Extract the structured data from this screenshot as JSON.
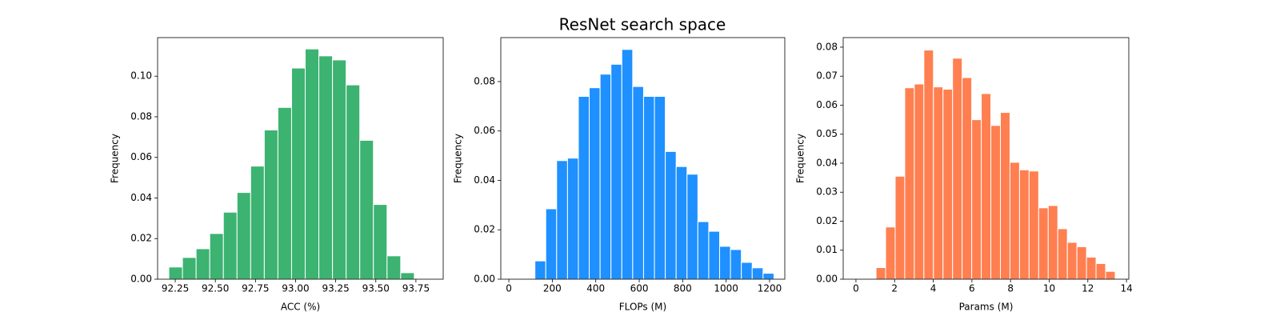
{
  "title": "ResNet search space",
  "chart_data": [
    {
      "type": "histogram",
      "x_label": "ACC (%)",
      "y_label": "Frequency",
      "color": "#3cb371",
      "bins": [
        92.21,
        92.295,
        92.38,
        92.465,
        92.55,
        92.635,
        92.72,
        92.805,
        92.89,
        92.975,
        93.06,
        93.145,
        93.23,
        93.315,
        93.4,
        93.485,
        93.57,
        93.655,
        93.74,
        93.825
      ],
      "values": [
        0.006,
        0.0107,
        0.015,
        0.0225,
        0.033,
        0.0427,
        0.0557,
        0.0735,
        0.0846,
        0.104,
        0.1134,
        0.11,
        0.108,
        0.0957,
        0.0684,
        0.0368,
        0.0115,
        0.0032,
        0.0004
      ],
      "xlim": [
        92.14,
        93.92
      ],
      "xticks": [
        92.25,
        {
          "value": 92.5,
          "label": "92.50"
        },
        92.75,
        {
          "value": 93.0,
          "label": "93.00"
        },
        93.25,
        {
          "value": 93.5,
          "label": "93.50"
        },
        93.75
      ],
      "ylim": [
        0,
        0.119
      ],
      "yticks": [
        {
          "value": 0,
          "label": "0.00"
        },
        0.02,
        0.04,
        0.06,
        0.08,
        {
          "value": 0.1,
          "label": "0.10"
        }
      ]
    },
    {
      "type": "histogram",
      "x_label": "FLOPs (M)",
      "y_label": "Frequency",
      "color": "#1e90ff",
      "bins": [
        70,
        120,
        170,
        220,
        270,
        320,
        370,
        420,
        470,
        520,
        570,
        620,
        670,
        720,
        770,
        820,
        870,
        920,
        970,
        1020,
        1070,
        1120,
        1170,
        1220
      ],
      "values": [
        0.0003,
        0.0074,
        0.0285,
        0.048,
        0.049,
        0.074,
        0.0775,
        0.083,
        0.087,
        0.093,
        0.078,
        0.074,
        0.074,
        0.0517,
        0.0456,
        0.0425,
        0.0233,
        0.0194,
        0.0133,
        0.012,
        0.0068,
        0.0046,
        0.0024
      ],
      "xlim": [
        -37,
        1270
      ],
      "xticks": [
        0,
        200,
        400,
        600,
        800,
        1000,
        1200
      ],
      "ylim": [
        0,
        0.0978
      ],
      "yticks": [
        {
          "value": 0,
          "label": "0.00"
        },
        0.02,
        0.04,
        0.06,
        0.08
      ]
    },
    {
      "type": "histogram",
      "x_label": "Params (M)",
      "y_label": "Frequency",
      "color": "#ff7f50",
      "bins": [
        1.04,
        1.535,
        2.03,
        2.525,
        3.02,
        3.515,
        4.01,
        4.505,
        5.0,
        5.495,
        5.99,
        6.485,
        6.98,
        7.475,
        7.97,
        8.465,
        8.96,
        9.455,
        9.95,
        10.445,
        10.94,
        11.435,
        11.93,
        12.425,
        12.92,
        13.415
      ],
      "values": [
        0.004,
        0.018,
        0.0355,
        0.066,
        0.0673,
        0.079,
        0.0663,
        0.0655,
        0.0762,
        0.0695,
        0.055,
        0.064,
        0.053,
        0.0575,
        0.0403,
        0.0377,
        0.0373,
        0.0246,
        0.0254,
        0.0174,
        0.0127,
        0.0112,
        0.0076,
        0.0054,
        0.0027
      ],
      "xlim": [
        -0.66,
        14.12
      ],
      "xticks": [
        0,
        2,
        4,
        6,
        8,
        10,
        12,
        14
      ],
      "ylim": [
        0,
        0.0833
      ],
      "yticks": [
        {
          "value": 0,
          "label": "0.00"
        },
        0.01,
        0.02,
        0.03,
        0.04,
        0.05,
        0.06,
        0.07,
        0.08
      ]
    }
  ]
}
